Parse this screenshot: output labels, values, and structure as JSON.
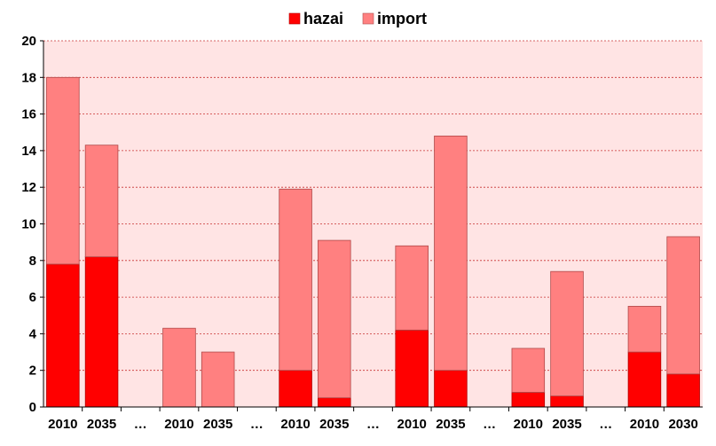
{
  "chart_data": {
    "type": "bar",
    "stacked": true,
    "categories": [
      "2010",
      "2035",
      "…",
      "2010",
      "2035",
      "…",
      "2010",
      "2035",
      "…",
      "2010",
      "2035",
      "…",
      "2010",
      "2035",
      "…",
      "2010",
      "2030"
    ],
    "series": [
      {
        "name": "hazai",
        "color": "#ff0000",
        "values": [
          7.8,
          8.2,
          0,
          0,
          0,
          0,
          2.0,
          0.5,
          0,
          4.2,
          2.0,
          0,
          0.8,
          0.6,
          0,
          3.0,
          1.8
        ]
      },
      {
        "name": "import",
        "color": "#ff8080",
        "values": [
          10.2,
          6.1,
          0,
          4.3,
          3.0,
          0,
          9.9,
          8.6,
          0,
          4.6,
          12.8,
          0,
          2.4,
          6.8,
          0,
          2.5,
          7.5
        ]
      }
    ],
    "ylim": [
      0,
      20
    ],
    "yticks": [
      "0",
      "2",
      "4",
      "6",
      "8",
      "10",
      "12",
      "14",
      "16",
      "18",
      "20"
    ],
    "grid": true,
    "legend": "top-center",
    "background_color": "#ffe4e4"
  }
}
